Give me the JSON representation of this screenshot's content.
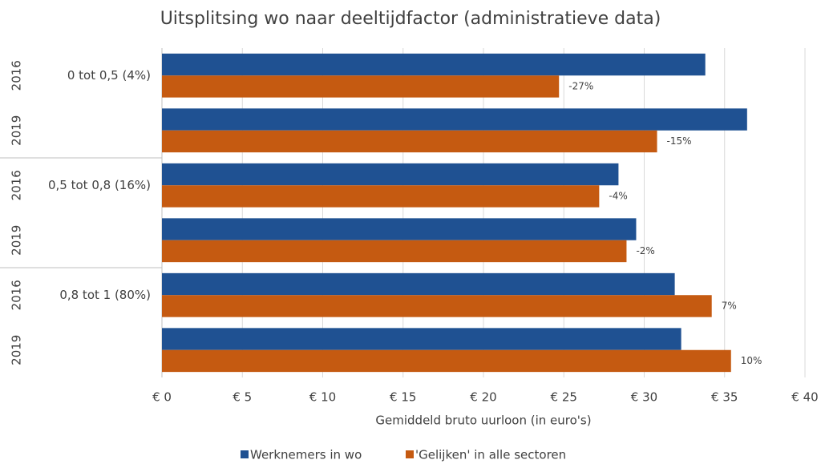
{
  "chart_data": {
    "type": "bar",
    "orientation": "horizontal",
    "title": "Uitsplitsing wo naar deeltijdfactor (administratieve data)",
    "x_label": "Gemiddeld bruto uurloon (in euro's)",
    "groups": [
      "0 tot 0,5 (4%)",
      "0,5 tot 0,8 (16%)",
      "0,8 tot 1 (80%)"
    ],
    "categories": [
      "2016",
      "2019",
      "2016",
      "2019",
      "2016",
      "2019"
    ],
    "series": [
      {
        "name": "Werknemers in wo",
        "color": "#1f5192",
        "values": [
          33.8,
          36.4,
          28.4,
          29.5,
          31.9,
          32.3
        ]
      },
      {
        "name": "'Gelijken' in alle sectoren",
        "color": "#c55a11",
        "values": [
          24.7,
          30.8,
          27.2,
          28.9,
          34.2,
          35.4
        ],
        "annotations": [
          "-27%",
          "-15%",
          "-4%",
          "-2%",
          "7%",
          "10%"
        ]
      }
    ],
    "xlim": [
      0,
      40
    ],
    "xticks": [
      {
        "value": 0,
        "label": "€ 0"
      },
      {
        "value": 5,
        "label": "€ 5"
      },
      {
        "value": 10,
        "label": "€ 10"
      },
      {
        "value": 15,
        "label": "€ 15"
      },
      {
        "value": 20,
        "label": "€ 20"
      },
      {
        "value": 25,
        "label": "€ 25"
      },
      {
        "value": 30,
        "label": "€ 30"
      },
      {
        "value": 35,
        "label": "€ 35"
      },
      {
        "value": 40,
        "label": "€ 40"
      }
    ],
    "grid": true,
    "legend": "bottom"
  }
}
